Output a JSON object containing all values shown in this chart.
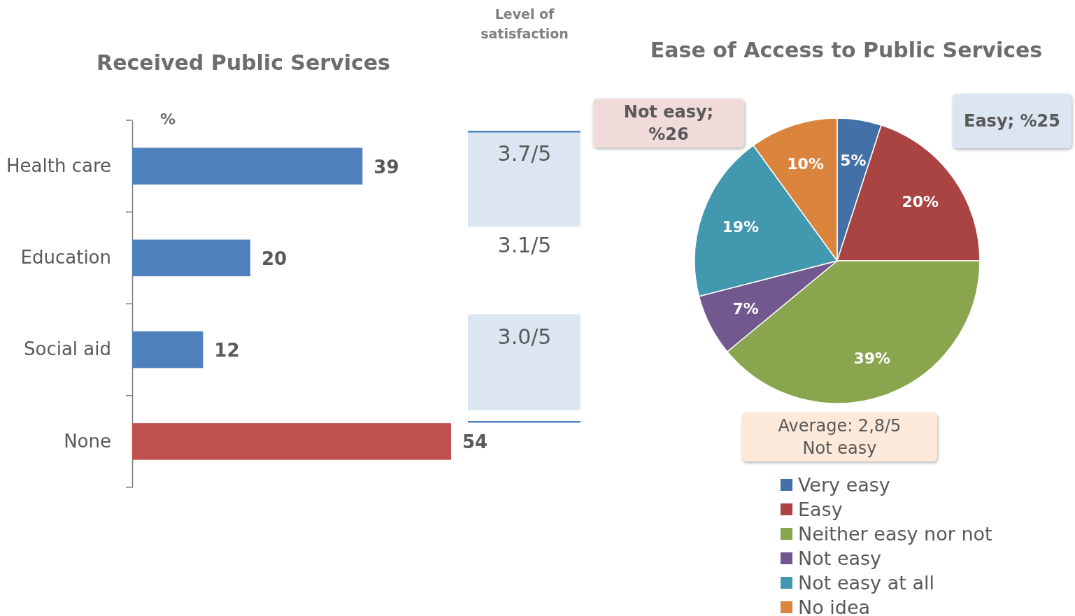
{
  "chart_data": [
    {
      "type": "bar",
      "orientation": "horizontal",
      "title": "Received Public Services",
      "categories": [
        "Health care",
        "Education",
        "Social aid",
        "None"
      ],
      "values": [
        39,
        20,
        12,
        54
      ],
      "colors": [
        "#4f81bd",
        "#4f81bd",
        "#4f81bd",
        "#c0504d"
      ],
      "tick_labels": "y",
      "data_labels": true,
      "annotations": [
        "%",
        "Level of satisfaction",
        "3.7/5",
        "3.1/5",
        "3.0/5"
      ]
    },
    {
      "type": "pie",
      "title": "Ease of Access to Public Services",
      "categories": [
        "Very easy",
        "Easy",
        "Neither easy nor not",
        "Not easy",
        "Not easy at all",
        "No idea"
      ],
      "values": [
        5,
        20,
        39,
        7,
        19,
        10
      ],
      "colors": [
        "#4470a8",
        "#a94442",
        "#89a54e",
        "#71588f",
        "#4198af",
        "#db843d"
      ],
      "value_labels": [
        "5%",
        "20%",
        "39%",
        "7%",
        "19%",
        "10%"
      ],
      "legend": "bottom",
      "annotations": [
        "Not easy; %26",
        "Easy; %25",
        "Average: 2,8/5 Not easy"
      ]
    }
  ]
}
